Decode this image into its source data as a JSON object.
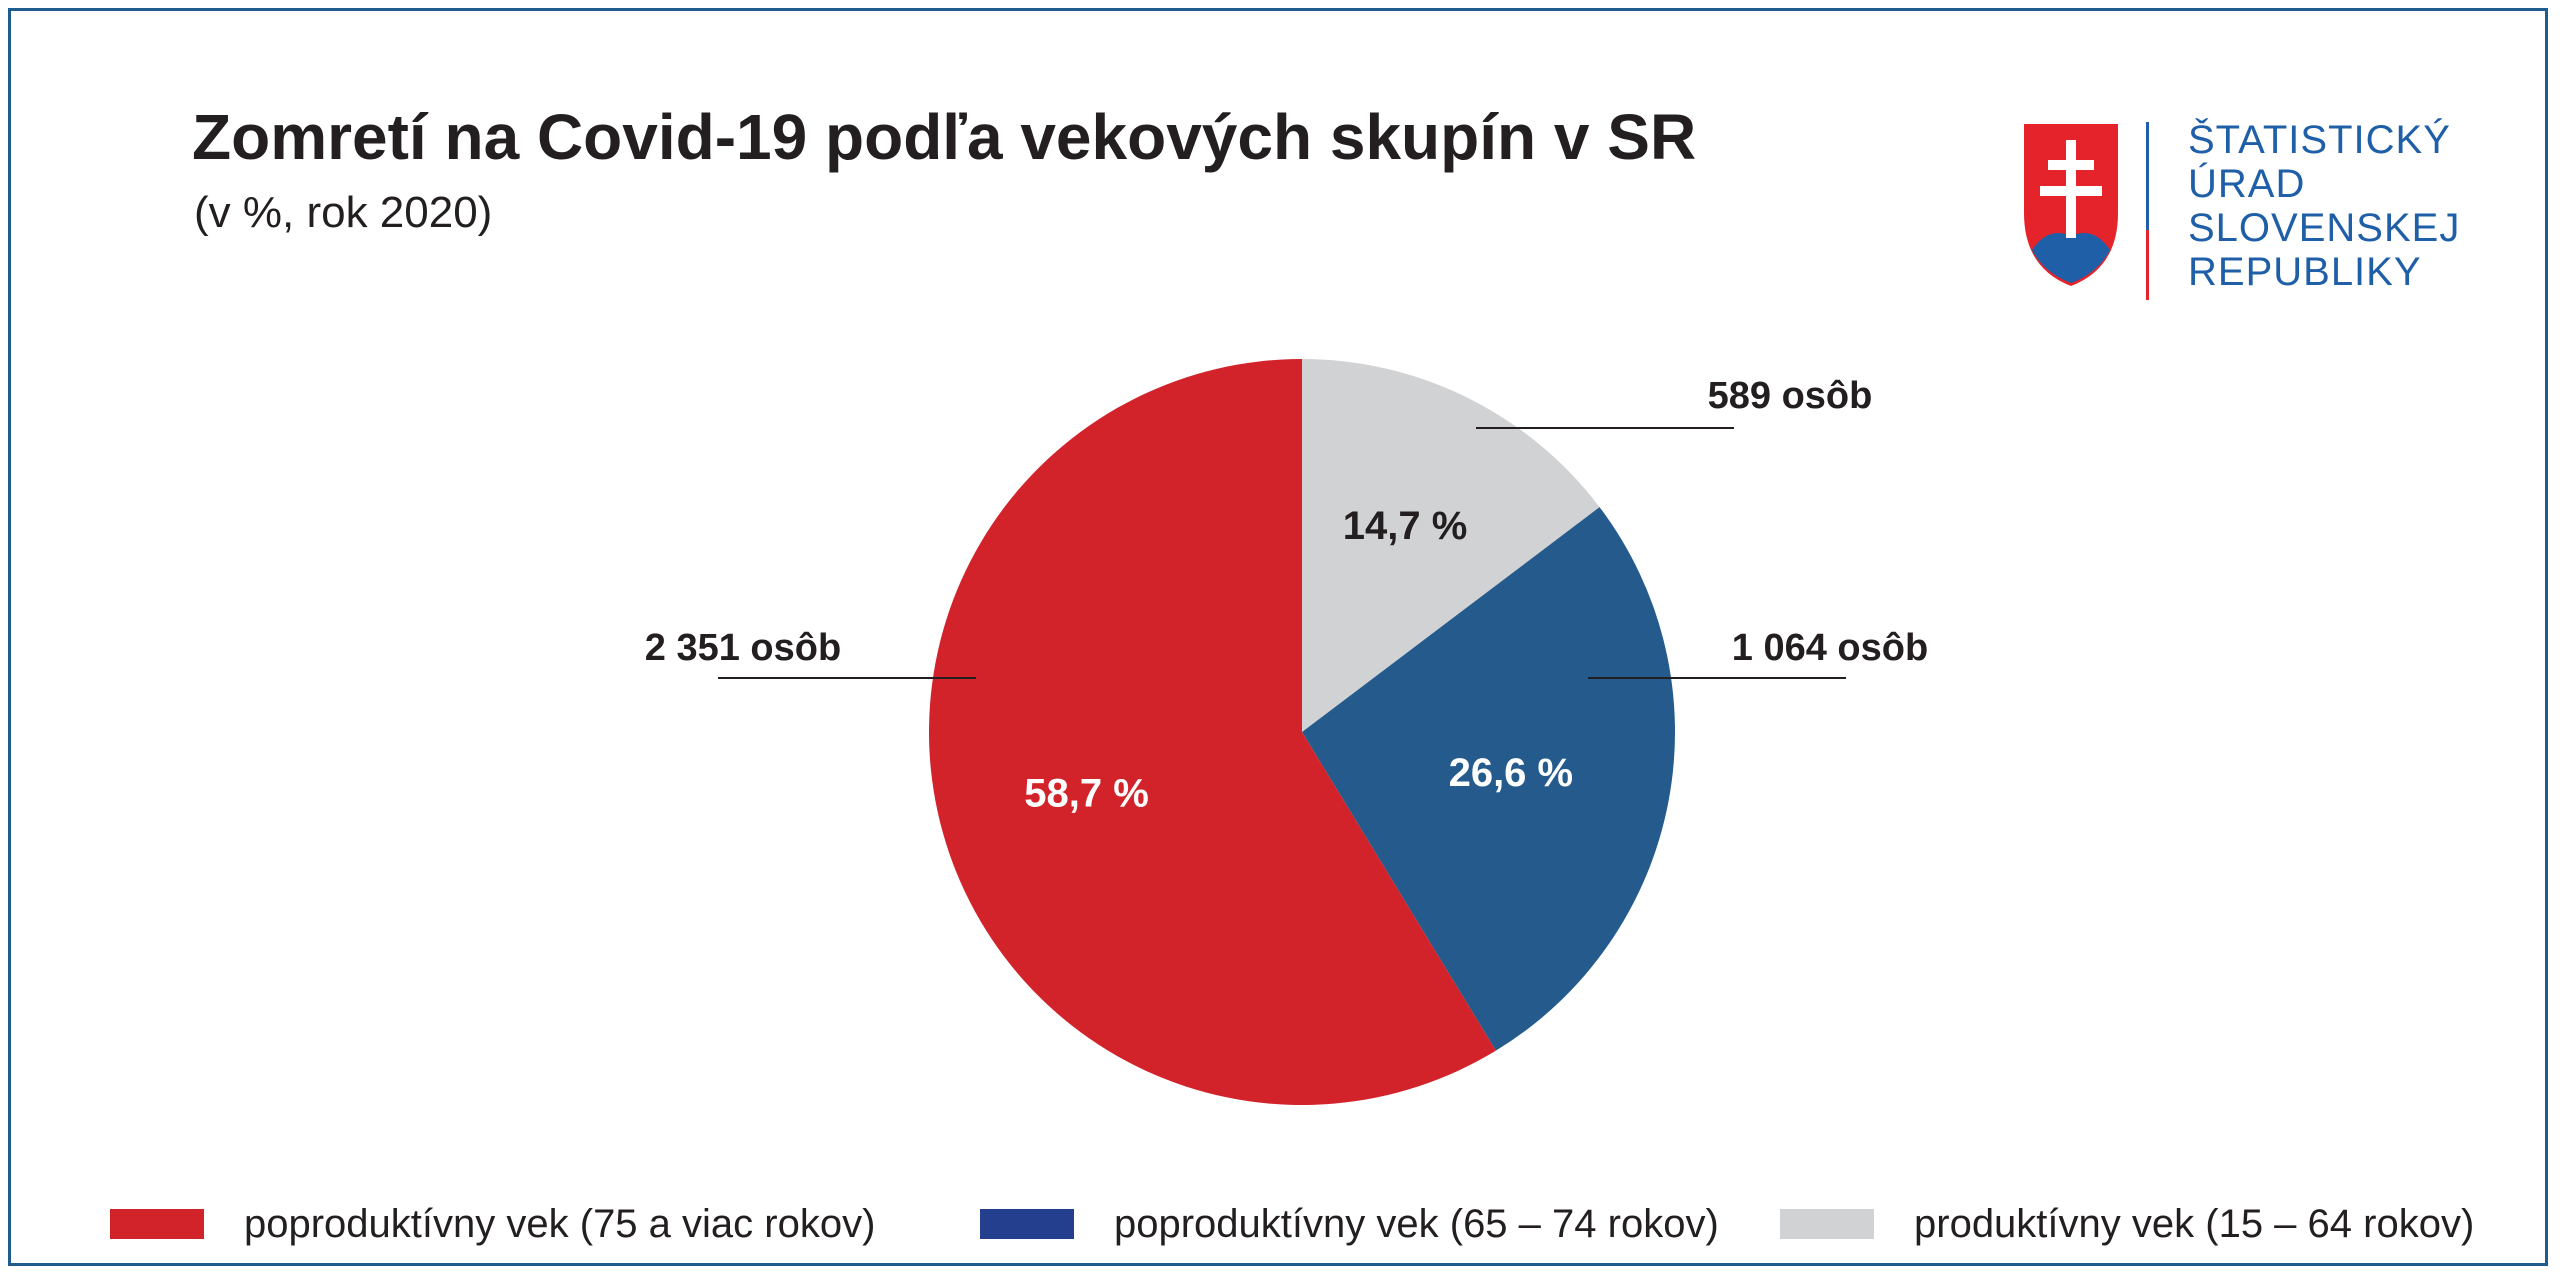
{
  "header": {
    "title": "Zomretí na Covid-19 podľa vekových skupín v SR",
    "subtitle": "(v %, rok 2020)"
  },
  "logo": {
    "icon": "slovak-coat-of-arms-icon",
    "lines": [
      "ŠTATISTICKÝ",
      "ÚRAD",
      "SLOVENSKEJ",
      "REPUBLIKY"
    ],
    "text_color": "#1f5fa8"
  },
  "chart_data": {
    "type": "pie",
    "title": "Zomretí na Covid-19 podľa vekových skupín v SR",
    "subtitle": "(v %, rok 2020)",
    "slices": [
      {
        "name": "produktívny vek (15 – 64 rokov)",
        "value": 14.7,
        "label": "14,7 %",
        "count_label": "589 osôb",
        "color": "#d1d2d4"
      },
      {
        "name": "poproduktívny vek (65 – 74 rokov)",
        "value": 26.6,
        "label": "26,6 %",
        "count_label": "1 064 osôb",
        "color": "#245a8c"
      },
      {
        "name": "poproduktívny vek (75 a viac rokov)",
        "value": 58.7,
        "label": "58,7 %",
        "count_label": "2 351 osôb",
        "color": "#d2232a"
      }
    ],
    "legend": [
      {
        "label": "poproduktívny vek (75 a viac rokov)",
        "color": "#d2232a"
      },
      {
        "label": "poproduktívny vek (65 – 74 rokov)",
        "color": "#233f8e"
      },
      {
        "label": "produktívny vek (15 – 64 rokov)",
        "color": "#d1d2d4"
      }
    ],
    "legend_position": "bottom",
    "start": "top, clockwise"
  }
}
